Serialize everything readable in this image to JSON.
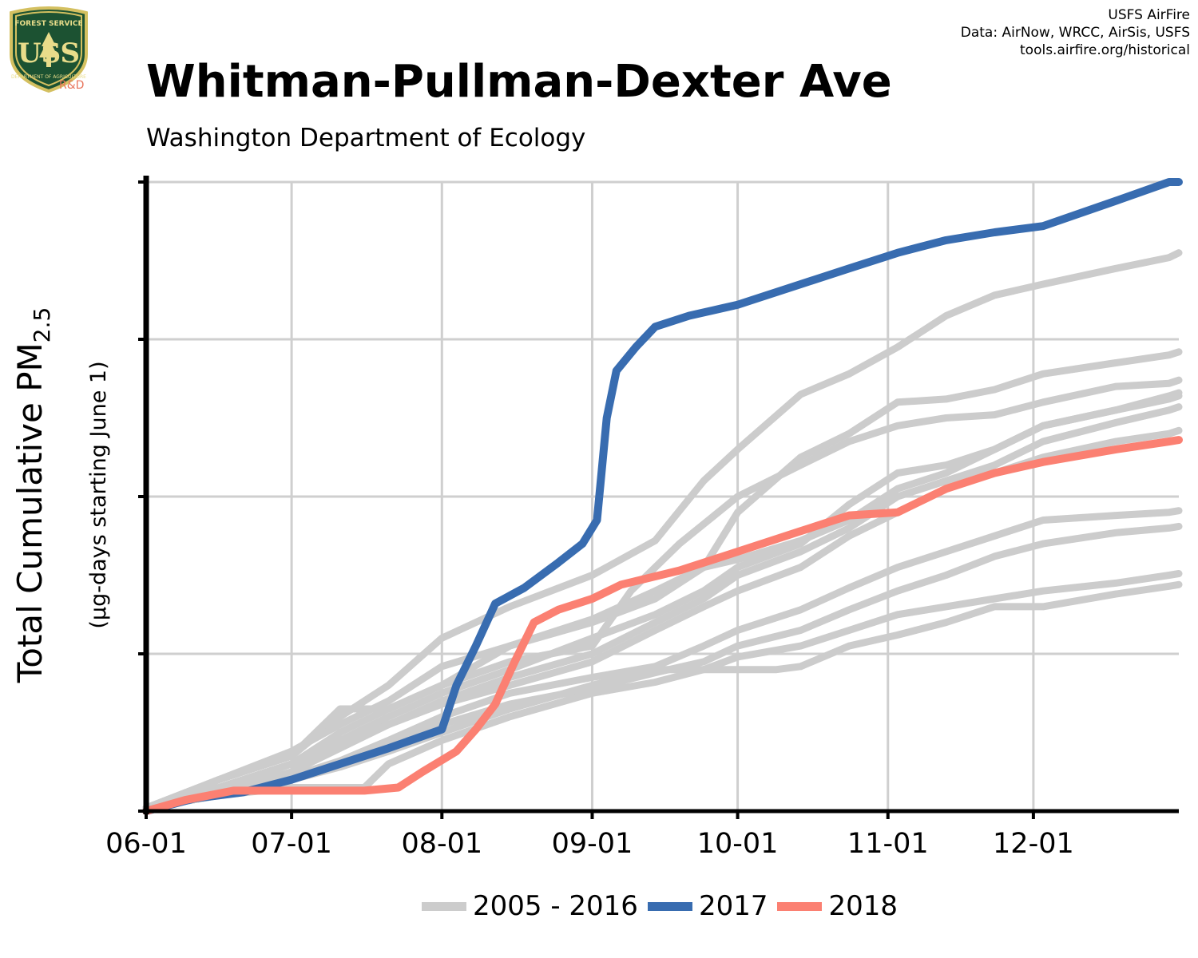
{
  "header": {
    "title": "Whitman-Pullman-Dexter Ave",
    "subtitle": "Washington Department of Ecology",
    "credits": [
      "USFS AirFire",
      "Data: AirNow, WRCC, AirSis, USFS",
      "tools.airfire.org/historical"
    ]
  },
  "logo": {
    "icon": "usfs-shield-icon",
    "text_top": "FOREST SERVICE",
    "letters": "USS",
    "text_bottom": "DEPARTMENT OF AGRICULTURE",
    "rd": "R&D"
  },
  "colors": {
    "history": "#cccccc",
    "y2017": "#386cb0",
    "y2018": "#fb8072",
    "grid": "#cfcfcf",
    "axis": "#000000"
  },
  "chart_data": {
    "type": "line",
    "title": "Whitman-Pullman-Dexter Ave",
    "subtitle": "Washington Department of Ecology",
    "ylabel": "Total Cumulative PM2.5",
    "ylabel_main": "Total Cumulative PM",
    "ylabel_sub": "2.5",
    "ylabel2": "(µg-days starting June 1)",
    "x_unit": "days since June 1",
    "xlim": [
      0,
      213
    ],
    "ylim": [
      0,
      4
    ],
    "x_ticks": [
      {
        "x": 0,
        "label": "06-01"
      },
      {
        "x": 30,
        "label": "07-01"
      },
      {
        "x": 61,
        "label": "08-01"
      },
      {
        "x": 92,
        "label": "09-01"
      },
      {
        "x": 122,
        "label": "10-01"
      },
      {
        "x": 153,
        "label": "11-01"
      },
      {
        "x": 183,
        "label": "12-01"
      }
    ],
    "y_ticks": [
      0,
      1,
      2,
      3,
      4
    ],
    "y_tick_labels_shown": false,
    "grid": true,
    "legend": {
      "position": "bottom",
      "entries": [
        {
          "label": "2005 - 2016",
          "color": "#cccccc"
        },
        {
          "label": "2017",
          "color": "#386cb0"
        },
        {
          "label": "2018",
          "color": "#fb8072"
        }
      ]
    },
    "history_series": [
      {
        "name": "hist-1",
        "points": [
          [
            0,
            0.02
          ],
          [
            15,
            0.2
          ],
          [
            30,
            0.35
          ],
          [
            40,
            0.6
          ],
          [
            50,
            0.8
          ],
          [
            61,
            1.1
          ],
          [
            75,
            1.3
          ],
          [
            92,
            1.5
          ],
          [
            105,
            1.72
          ],
          [
            115,
            2.1
          ],
          [
            122,
            2.3
          ],
          [
            135,
            2.65
          ],
          [
            145,
            2.78
          ],
          [
            155,
            2.95
          ],
          [
            165,
            3.15
          ],
          [
            175,
            3.28
          ],
          [
            185,
            3.35
          ],
          [
            200,
            3.45
          ],
          [
            211,
            3.52
          ],
          [
            213,
            3.55
          ]
        ]
      },
      {
        "name": "hist-2",
        "points": [
          [
            0,
            0.02
          ],
          [
            15,
            0.2
          ],
          [
            30,
            0.38
          ],
          [
            40,
            0.55
          ],
          [
            50,
            0.7
          ],
          [
            61,
            0.92
          ],
          [
            75,
            1.05
          ],
          [
            92,
            1.2
          ],
          [
            105,
            1.35
          ],
          [
            115,
            1.55
          ],
          [
            122,
            1.9
          ],
          [
            135,
            2.25
          ],
          [
            145,
            2.4
          ],
          [
            155,
            2.6
          ],
          [
            165,
            2.62
          ],
          [
            175,
            2.68
          ],
          [
            185,
            2.78
          ],
          [
            200,
            2.85
          ],
          [
            211,
            2.9
          ],
          [
            213,
            2.92
          ]
        ]
      },
      {
        "name": "hist-3",
        "points": [
          [
            0,
            0.02
          ],
          [
            15,
            0.15
          ],
          [
            30,
            0.3
          ],
          [
            40,
            0.5
          ],
          [
            50,
            0.65
          ],
          [
            61,
            0.8
          ],
          [
            75,
            0.95
          ],
          [
            92,
            1.05
          ],
          [
            100,
            1.4
          ],
          [
            105,
            1.55
          ],
          [
            110,
            1.7
          ],
          [
            122,
            2.0
          ],
          [
            135,
            2.2
          ],
          [
            145,
            2.35
          ],
          [
            155,
            2.45
          ],
          [
            165,
            2.5
          ],
          [
            175,
            2.52
          ],
          [
            185,
            2.6
          ],
          [
            200,
            2.7
          ],
          [
            211,
            2.72
          ],
          [
            213,
            2.74
          ]
        ]
      },
      {
        "name": "hist-4",
        "points": [
          [
            0,
            0.02
          ],
          [
            15,
            0.15
          ],
          [
            30,
            0.3
          ],
          [
            40,
            0.45
          ],
          [
            50,
            0.6
          ],
          [
            61,
            0.75
          ],
          [
            75,
            0.9
          ],
          [
            92,
            1.1
          ],
          [
            105,
            1.25
          ],
          [
            115,
            1.4
          ],
          [
            122,
            1.55
          ],
          [
            135,
            1.7
          ],
          [
            145,
            1.95
          ],
          [
            155,
            2.15
          ],
          [
            165,
            2.2
          ],
          [
            175,
            2.3
          ],
          [
            185,
            2.45
          ],
          [
            200,
            2.55
          ],
          [
            211,
            2.64
          ],
          [
            213,
            2.66
          ]
        ]
      },
      {
        "name": "hist-5",
        "points": [
          [
            0,
            0.02
          ],
          [
            15,
            0.15
          ],
          [
            30,
            0.3
          ],
          [
            40,
            0.42
          ],
          [
            50,
            0.55
          ],
          [
            61,
            0.7
          ],
          [
            75,
            0.85
          ],
          [
            92,
            1.0
          ],
          [
            105,
            1.2
          ],
          [
            115,
            1.35
          ],
          [
            122,
            1.5
          ],
          [
            135,
            1.65
          ],
          [
            145,
            1.8
          ],
          [
            155,
            2.0
          ],
          [
            165,
            2.1
          ],
          [
            175,
            2.2
          ],
          [
            185,
            2.35
          ],
          [
            200,
            2.47
          ],
          [
            211,
            2.55
          ],
          [
            213,
            2.57
          ]
        ]
      },
      {
        "name": "hist-6",
        "points": [
          [
            0,
            0.02
          ],
          [
            15,
            0.12
          ],
          [
            30,
            0.25
          ],
          [
            40,
            0.4
          ],
          [
            50,
            0.55
          ],
          [
            61,
            0.68
          ],
          [
            75,
            0.8
          ],
          [
            92,
            0.95
          ],
          [
            105,
            1.15
          ],
          [
            115,
            1.3
          ],
          [
            122,
            1.4
          ],
          [
            135,
            1.55
          ],
          [
            145,
            1.75
          ],
          [
            155,
            1.9
          ],
          [
            165,
            2.05
          ],
          [
            175,
            2.15
          ],
          [
            185,
            2.25
          ],
          [
            200,
            2.35
          ],
          [
            211,
            2.4
          ],
          [
            213,
            2.42
          ]
        ]
      },
      {
        "name": "hist-7",
        "points": [
          [
            0,
            0.02
          ],
          [
            15,
            0.1
          ],
          [
            30,
            0.22
          ],
          [
            40,
            0.32
          ],
          [
            50,
            0.45
          ],
          [
            61,
            0.6
          ],
          [
            75,
            0.75
          ],
          [
            92,
            0.85
          ],
          [
            105,
            0.92
          ],
          [
            115,
            1.05
          ],
          [
            122,
            1.15
          ],
          [
            135,
            1.28
          ],
          [
            145,
            1.42
          ],
          [
            155,
            1.55
          ],
          [
            165,
            1.65
          ],
          [
            175,
            1.75
          ],
          [
            185,
            1.85
          ],
          [
            200,
            1.88
          ],
          [
            211,
            1.9
          ],
          [
            213,
            1.91
          ]
        ]
      },
      {
        "name": "hist-8",
        "points": [
          [
            0,
            0.02
          ],
          [
            15,
            0.1
          ],
          [
            30,
            0.2
          ],
          [
            40,
            0.3
          ],
          [
            50,
            0.42
          ],
          [
            61,
            0.55
          ],
          [
            75,
            0.68
          ],
          [
            92,
            0.78
          ],
          [
            105,
            0.88
          ],
          [
            115,
            0.95
          ],
          [
            122,
            1.05
          ],
          [
            135,
            1.15
          ],
          [
            145,
            1.28
          ],
          [
            155,
            1.4
          ],
          [
            165,
            1.5
          ],
          [
            175,
            1.62
          ],
          [
            185,
            1.7
          ],
          [
            200,
            1.77
          ],
          [
            211,
            1.8
          ],
          [
            213,
            1.81
          ]
        ]
      },
      {
        "name": "hist-9",
        "points": [
          [
            0,
            0.02
          ],
          [
            15,
            0.1
          ],
          [
            30,
            0.15
          ],
          [
            45,
            0.15
          ],
          [
            50,
            0.3
          ],
          [
            61,
            0.45
          ],
          [
            75,
            0.6
          ],
          [
            92,
            0.75
          ],
          [
            105,
            0.82
          ],
          [
            115,
            0.9
          ],
          [
            122,
            0.98
          ],
          [
            135,
            1.05
          ],
          [
            145,
            1.15
          ],
          [
            155,
            1.25
          ],
          [
            165,
            1.3
          ],
          [
            175,
            1.35
          ],
          [
            185,
            1.4
          ],
          [
            200,
            1.45
          ],
          [
            211,
            1.5
          ],
          [
            213,
            1.51
          ]
        ]
      },
      {
        "name": "hist-10",
        "points": [
          [
            0,
            0.02
          ],
          [
            15,
            0.1
          ],
          [
            30,
            0.2
          ],
          [
            40,
            0.28
          ],
          [
            50,
            0.38
          ],
          [
            61,
            0.5
          ],
          [
            75,
            0.65
          ],
          [
            92,
            0.8
          ],
          [
            105,
            0.9
          ],
          [
            130,
            0.9
          ],
          [
            135,
            0.92
          ],
          [
            145,
            1.05
          ],
          [
            155,
            1.12
          ],
          [
            165,
            1.2
          ],
          [
            175,
            1.3
          ],
          [
            185,
            1.3
          ],
          [
            200,
            1.38
          ],
          [
            211,
            1.43
          ],
          [
            213,
            1.44
          ]
        ]
      },
      {
        "name": "hist-11",
        "points": [
          [
            0,
            0.02
          ],
          [
            15,
            0.2
          ],
          [
            30,
            0.35
          ],
          [
            40,
            0.65
          ],
          [
            50,
            0.65
          ],
          [
            61,
            0.8
          ],
          [
            75,
            1.05
          ],
          [
            92,
            1.22
          ],
          [
            105,
            1.4
          ],
          [
            115,
            1.55
          ],
          [
            122,
            1.6
          ],
          [
            135,
            1.72
          ],
          [
            145,
            1.85
          ],
          [
            155,
            2.05
          ],
          [
            165,
            2.15
          ],
          [
            175,
            2.3
          ],
          [
            185,
            2.45
          ],
          [
            200,
            2.55
          ],
          [
            211,
            2.62
          ],
          [
            213,
            2.64
          ]
        ]
      }
    ],
    "series": [
      {
        "name": "2017",
        "color": "#386cb0",
        "points": [
          [
            0,
            0.0
          ],
          [
            10,
            0.08
          ],
          [
            20,
            0.12
          ],
          [
            30,
            0.2
          ],
          [
            40,
            0.3
          ],
          [
            50,
            0.4
          ],
          [
            61,
            0.52
          ],
          [
            64,
            0.8
          ],
          [
            68,
            1.05
          ],
          [
            72,
            1.32
          ],
          [
            78,
            1.42
          ],
          [
            85,
            1.58
          ],
          [
            90,
            1.7
          ],
          [
            93,
            1.85
          ],
          [
            95,
            2.5
          ],
          [
            97,
            2.8
          ],
          [
            101,
            2.95
          ],
          [
            105,
            3.08
          ],
          [
            112,
            3.15
          ],
          [
            122,
            3.22
          ],
          [
            135,
            3.35
          ],
          [
            145,
            3.45
          ],
          [
            155,
            3.55
          ],
          [
            165,
            3.63
          ],
          [
            175,
            3.68
          ],
          [
            185,
            3.72
          ],
          [
            200,
            3.88
          ],
          [
            211,
            4.0
          ],
          [
            213,
            4.0
          ]
        ]
      },
      {
        "name": "2018",
        "color": "#fb8072",
        "points": [
          [
            0,
            0.0
          ],
          [
            8,
            0.07
          ],
          [
            18,
            0.13
          ],
          [
            30,
            0.13
          ],
          [
            45,
            0.13
          ],
          [
            52,
            0.15
          ],
          [
            57,
            0.25
          ],
          [
            64,
            0.38
          ],
          [
            68,
            0.52
          ],
          [
            72,
            0.68
          ],
          [
            76,
            0.95
          ],
          [
            80,
            1.2
          ],
          [
            85,
            1.28
          ],
          [
            92,
            1.35
          ],
          [
            98,
            1.44
          ],
          [
            110,
            1.53
          ],
          [
            122,
            1.65
          ],
          [
            135,
            1.78
          ],
          [
            145,
            1.88
          ],
          [
            155,
            1.9
          ],
          [
            165,
            2.05
          ],
          [
            175,
            2.15
          ],
          [
            185,
            2.22
          ],
          [
            200,
            2.3
          ],
          [
            211,
            2.35
          ],
          [
            213,
            2.36
          ]
        ]
      }
    ]
  },
  "legend_labels": {
    "history": "2005 - 2016",
    "y2017": "2017",
    "y2018": "2018"
  }
}
